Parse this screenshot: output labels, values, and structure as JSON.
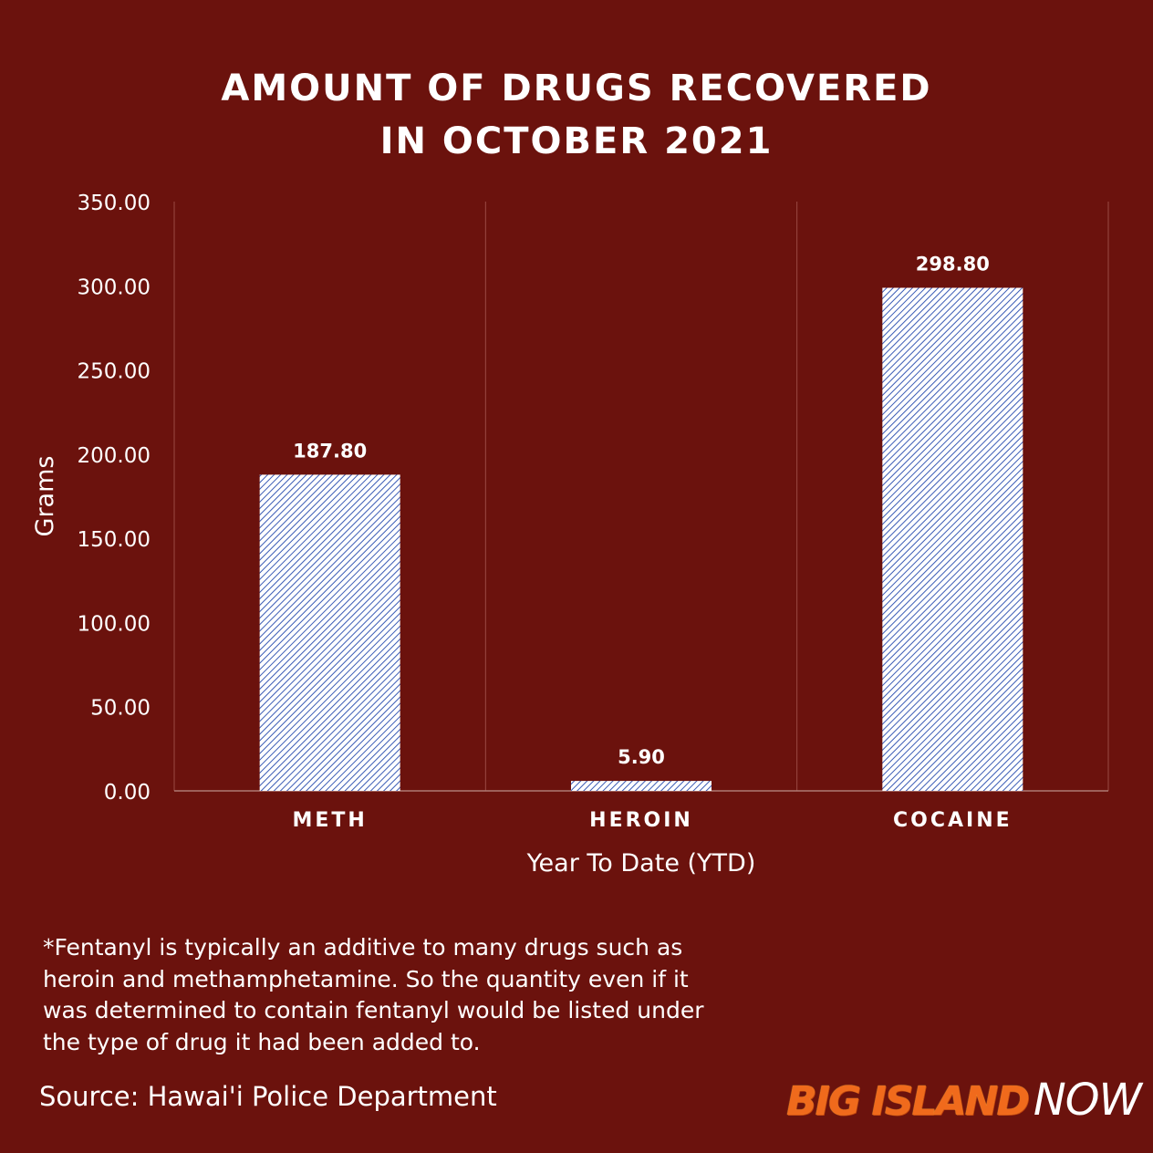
{
  "title_line1": "AMOUNT OF DRUGS RECOVERED",
  "title_line2": "IN OCTOBER 2021",
  "chart_data": {
    "type": "bar",
    "categories": [
      "METH",
      "HEROIN",
      "COCAINE"
    ],
    "values": [
      187.8,
      5.9,
      298.8
    ],
    "value_labels": [
      "187.80",
      "5.90",
      "298.80"
    ],
    "ylabel": "Grams",
    "xlabel": "Year To Date (YTD)",
    "ylim": [
      0,
      350
    ],
    "yticks": [
      "0.00",
      "50.00",
      "100.00",
      "150.00",
      "200.00",
      "250.00",
      "300.00",
      "350.00"
    ],
    "bar_fill": "diagonal hatch, blue on white",
    "hatch_color": "#3a5bb5",
    "grid": "vertical category separators"
  },
  "note": "*Fentanyl is typically an additive to many drugs such as heroin and methamphetamine. So the quantity even if it was determined to contain fentanyl would be listed under the type of drug it had been added to.",
  "source": "Source: Hawai'i Police Department",
  "logo_big": "BIG ISLAND",
  "logo_now": "NOW",
  "colors": {
    "background": "#6b120d",
    "text": "#ffffff",
    "logo_orange": "#f06a1c"
  }
}
